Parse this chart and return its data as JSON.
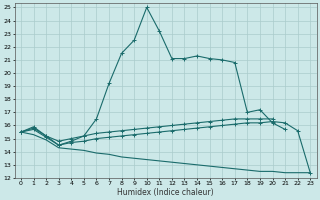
{
  "xlabel": "Humidex (Indice chaleur)",
  "background_color": "#cce8e8",
  "grid_color": "#aacccc",
  "line_color": "#1a6b6b",
  "xlim": [
    -0.5,
    23.5
  ],
  "ylim": [
    12,
    25.3
  ],
  "xticks": [
    0,
    1,
    2,
    3,
    4,
    5,
    6,
    7,
    8,
    9,
    10,
    11,
    12,
    13,
    14,
    15,
    16,
    17,
    18,
    19,
    20,
    21,
    22,
    23
  ],
  "yticks": [
    12,
    13,
    14,
    15,
    16,
    17,
    18,
    19,
    20,
    21,
    22,
    23,
    24,
    25
  ],
  "curve_main": {
    "x": [
      0,
      1,
      2,
      3,
      4,
      5,
      6,
      7,
      8,
      9,
      10,
      11,
      12,
      13,
      14,
      15,
      16,
      17,
      18,
      19,
      20,
      21
    ],
    "y": [
      15.5,
      15.9,
      15.2,
      14.5,
      14.8,
      15.2,
      16.5,
      19.2,
      21.5,
      22.5,
      25.0,
      23.2,
      21.1,
      21.1,
      21.3,
      21.1,
      21.0,
      20.8,
      17.0,
      17.2,
      16.2,
      15.7
    ]
  },
  "curve_upper_flat": {
    "x": [
      0,
      1,
      2,
      3,
      4,
      5,
      6,
      7,
      8,
      9,
      10,
      11,
      12,
      13,
      14,
      15,
      16,
      17,
      18,
      19,
      20
    ],
    "y": [
      15.5,
      15.8,
      15.2,
      14.8,
      15.0,
      15.2,
      15.4,
      15.5,
      15.6,
      15.7,
      15.8,
      15.9,
      16.0,
      16.1,
      16.2,
      16.3,
      16.4,
      16.5,
      16.5,
      16.5,
      16.5
    ]
  },
  "curve_lower_flat": {
    "x": [
      0,
      1,
      2,
      3,
      4,
      5,
      6,
      7,
      8,
      9,
      10,
      11,
      12,
      13,
      14,
      15,
      16,
      17,
      18,
      19,
      20,
      21,
      22,
      23
    ],
    "y": [
      15.5,
      15.7,
      15.1,
      14.5,
      14.7,
      14.8,
      15.0,
      15.1,
      15.2,
      15.3,
      15.4,
      15.5,
      15.6,
      15.7,
      15.8,
      15.9,
      16.0,
      16.1,
      16.2,
      16.2,
      16.3,
      16.2,
      15.6,
      12.4
    ]
  },
  "curve_bottom": {
    "x": [
      0,
      1,
      2,
      3,
      4,
      5,
      6,
      7,
      8,
      9,
      10,
      11,
      12,
      13,
      14,
      15,
      16,
      17,
      18,
      19,
      20,
      21,
      22,
      23
    ],
    "y": [
      15.5,
      15.3,
      14.9,
      14.3,
      14.2,
      14.1,
      13.9,
      13.8,
      13.6,
      13.5,
      13.4,
      13.3,
      13.2,
      13.1,
      13.0,
      12.9,
      12.8,
      12.7,
      12.6,
      12.5,
      12.5,
      12.4,
      12.4,
      12.4
    ]
  }
}
